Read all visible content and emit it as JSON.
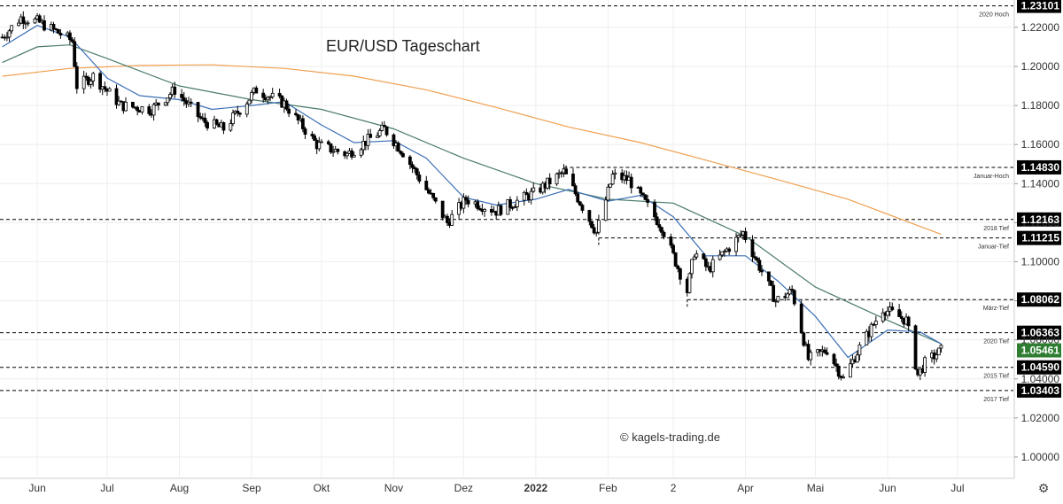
{
  "chart_data": {
    "type": "candlestick",
    "title": "EUR/USD Tageschart",
    "watermark": "© kagels-trading.de",
    "y_scale": "linear",
    "ylim": [
      0.99,
      1.234
    ],
    "y_ticks": [
      1.0,
      1.02,
      1.04,
      1.06,
      1.08,
      1.1,
      1.12,
      1.14,
      1.16,
      1.18,
      1.2,
      1.22
    ],
    "y_tick_labels": [
      "1.00000",
      "1.02000",
      "1.04000",
      "1.06000",
      "1.08000",
      "1.10000",
      "1.12000",
      "1.14000",
      "1.16000",
      "1.18000",
      "1.20000",
      "1.22000"
    ],
    "x_range": [
      "2021-05-16",
      "2022-07-25"
    ],
    "x_ticks": [
      {
        "date": "2021-06-01",
        "label": "Jun"
      },
      {
        "date": "2021-07-01",
        "label": "Jul"
      },
      {
        "date": "2021-08-01",
        "label": "Aug"
      },
      {
        "date": "2021-09-01",
        "label": "Sep"
      },
      {
        "date": "2021-10-01",
        "label": "Okt"
      },
      {
        "date": "2021-11-01",
        "label": "Nov"
      },
      {
        "date": "2021-12-01",
        "label": "Dez"
      },
      {
        "date": "2022-01-01",
        "label": "2022",
        "bold": true
      },
      {
        "date": "2022-02-01",
        "label": "Feb"
      },
      {
        "date": "2022-03-01",
        "label": "2"
      },
      {
        "date": "2022-04-01",
        "label": "Apr"
      },
      {
        "date": "2022-05-01",
        "label": "Mai"
      },
      {
        "date": "2022-06-01",
        "label": "Jun"
      },
      {
        "date": "2022-07-01",
        "label": "Jul"
      }
    ],
    "grid": true,
    "colors": {
      "bull": "#ffffff",
      "bear": "#000000",
      "wick": "#000000",
      "ma_fast": "#3b6fb6",
      "ma_mid": "#4a7a6a",
      "ma_slow": "#f0a050",
      "grid": "#eeeeee",
      "level_line": "#000000",
      "last_price_bg": "#2e7d32"
    },
    "price_path": [
      {
        "date": "2021-05-17",
        "value": 1.215
      },
      {
        "date": "2021-05-25",
        "value": 1.225
      },
      {
        "date": "2021-06-01",
        "value": 1.223
      },
      {
        "date": "2021-06-09",
        "value": 1.218
      },
      {
        "date": "2021-06-16",
        "value": 1.213
      },
      {
        "date": "2021-06-18",
        "value": 1.19
      },
      {
        "date": "2021-06-25",
        "value": 1.195
      },
      {
        "date": "2021-07-07",
        "value": 1.18
      },
      {
        "date": "2021-07-20",
        "value": 1.178
      },
      {
        "date": "2021-07-30",
        "value": 1.188
      },
      {
        "date": "2021-08-11",
        "value": 1.172
      },
      {
        "date": "2021-08-20",
        "value": 1.168
      },
      {
        "date": "2021-09-03",
        "value": 1.188
      },
      {
        "date": "2021-09-15",
        "value": 1.181
      },
      {
        "date": "2021-09-29",
        "value": 1.16
      },
      {
        "date": "2021-10-12",
        "value": 1.155
      },
      {
        "date": "2021-10-28",
        "value": 1.168
      },
      {
        "date": "2021-11-05",
        "value": 1.156
      },
      {
        "date": "2021-11-24",
        "value": 1.12
      },
      {
        "date": "2021-12-02",
        "value": 1.132
      },
      {
        "date": "2021-12-15",
        "value": 1.126
      },
      {
        "date": "2021-12-31",
        "value": 1.135
      },
      {
        "date": "2022-01-13",
        "value": 1.146
      },
      {
        "date": "2022-01-27",
        "value": 1.115
      },
      {
        "date": "2022-02-03",
        "value": 1.144
      },
      {
        "date": "2022-02-10",
        "value": 1.142
      },
      {
        "date": "2022-02-24",
        "value": 1.118
      },
      {
        "date": "2022-03-07",
        "value": 1.085
      },
      {
        "date": "2022-03-10",
        "value": 1.105
      },
      {
        "date": "2022-03-16",
        "value": 1.096
      },
      {
        "date": "2022-03-31",
        "value": 1.115
      },
      {
        "date": "2022-04-14",
        "value": 1.08
      },
      {
        "date": "2022-04-21",
        "value": 1.085
      },
      {
        "date": "2022-04-28",
        "value": 1.05
      },
      {
        "date": "2022-05-06",
        "value": 1.055
      },
      {
        "date": "2022-05-13",
        "value": 1.04
      },
      {
        "date": "2022-05-20",
        "value": 1.056
      },
      {
        "date": "2022-05-30",
        "value": 1.076
      },
      {
        "date": "2022-06-09",
        "value": 1.07
      },
      {
        "date": "2022-06-14",
        "value": 1.042
      },
      {
        "date": "2022-06-17",
        "value": 1.048
      },
      {
        "date": "2022-06-24",
        "value": 1.0546
      }
    ],
    "ma_fast": [
      [
        "2021-05-17",
        1.21
      ],
      [
        "2021-06-01",
        1.221
      ],
      [
        "2021-06-15",
        1.215
      ],
      [
        "2021-07-01",
        1.194
      ],
      [
        "2021-07-15",
        1.185
      ],
      [
        "2021-08-01",
        1.183
      ],
      [
        "2021-08-15",
        1.178
      ],
      [
        "2021-09-01",
        1.18
      ],
      [
        "2021-09-15",
        1.182
      ],
      [
        "2021-10-01",
        1.17
      ],
      [
        "2021-10-15",
        1.161
      ],
      [
        "2021-11-01",
        1.162
      ],
      [
        "2021-11-15",
        1.153
      ],
      [
        "2021-12-01",
        1.133
      ],
      [
        "2021-12-15",
        1.129
      ],
      [
        "2022-01-01",
        1.132
      ],
      [
        "2022-01-15",
        1.137
      ],
      [
        "2022-02-01",
        1.131
      ],
      [
        "2022-02-15",
        1.134
      ],
      [
        "2022-03-01",
        1.123
      ],
      [
        "2022-03-15",
        1.103
      ],
      [
        "2022-04-01",
        1.103
      ],
      [
        "2022-04-15",
        1.09
      ],
      [
        "2022-05-01",
        1.072
      ],
      [
        "2022-05-15",
        1.051
      ],
      [
        "2022-06-01",
        1.065
      ],
      [
        "2022-06-15",
        1.064
      ],
      [
        "2022-06-24",
        1.058
      ]
    ],
    "ma_mid": [
      [
        "2021-05-17",
        1.202
      ],
      [
        "2021-06-01",
        1.21
      ],
      [
        "2021-06-15",
        1.211
      ],
      [
        "2021-07-01",
        1.204
      ],
      [
        "2021-08-01",
        1.19
      ],
      [
        "2021-09-01",
        1.183
      ],
      [
        "2021-10-01",
        1.178
      ],
      [
        "2021-11-01",
        1.168
      ],
      [
        "2021-12-01",
        1.153
      ],
      [
        "2022-01-01",
        1.14
      ],
      [
        "2022-02-01",
        1.132
      ],
      [
        "2022-03-01",
        1.13
      ],
      [
        "2022-04-01",
        1.113
      ],
      [
        "2022-05-01",
        1.087
      ],
      [
        "2022-06-01",
        1.07
      ],
      [
        "2022-06-24",
        1.058
      ]
    ],
    "ma_slow": [
      [
        "2021-05-17",
        1.195
      ],
      [
        "2021-06-15",
        1.199
      ],
      [
        "2021-07-15",
        1.2005
      ],
      [
        "2021-08-15",
        1.2008
      ],
      [
        "2021-09-15",
        1.199
      ],
      [
        "2021-10-15",
        1.195
      ],
      [
        "2021-11-15",
        1.188
      ],
      [
        "2021-12-15",
        1.179
      ],
      [
        "2022-01-15",
        1.169
      ],
      [
        "2022-02-15",
        1.161
      ],
      [
        "2022-03-15",
        1.152
      ],
      [
        "2022-04-15",
        1.142
      ],
      [
        "2022-05-15",
        1.132
      ],
      [
        "2022-06-24",
        1.114
      ]
    ],
    "levels": [
      {
        "value": 1.23101,
        "label": "2020 Hoch",
        "price_label": "1.23101",
        "from": "2021-05-16"
      },
      {
        "value": 1.1483,
        "label": "Januar-Hoch",
        "price_label": "1.14830",
        "from": "2022-01-13"
      },
      {
        "value": 1.12163,
        "label": "2018 Tief",
        "price_label": "1.12163",
        "from": "2021-05-16"
      },
      {
        "value": 1.11215,
        "label": "Januar-Tief",
        "price_label": "1.11215",
        "from": "2022-01-28"
      },
      {
        "value": 1.08062,
        "label": "März-Tief",
        "price_label": "1.08062",
        "from": "2022-03-07"
      },
      {
        "value": 1.06363,
        "label": "2020 Tief",
        "price_label": "1.06363",
        "from": "2021-05-16"
      },
      {
        "value": 1.0459,
        "label": "2015 Tief",
        "price_label": "1.04590",
        "from": "2021-05-16"
      },
      {
        "value": 1.03403,
        "label": "2017 Tief",
        "price_label": "1.03403",
        "from": "2021-05-16"
      }
    ],
    "last_price": {
      "value": 1.05461,
      "label": "1.05461"
    }
  }
}
